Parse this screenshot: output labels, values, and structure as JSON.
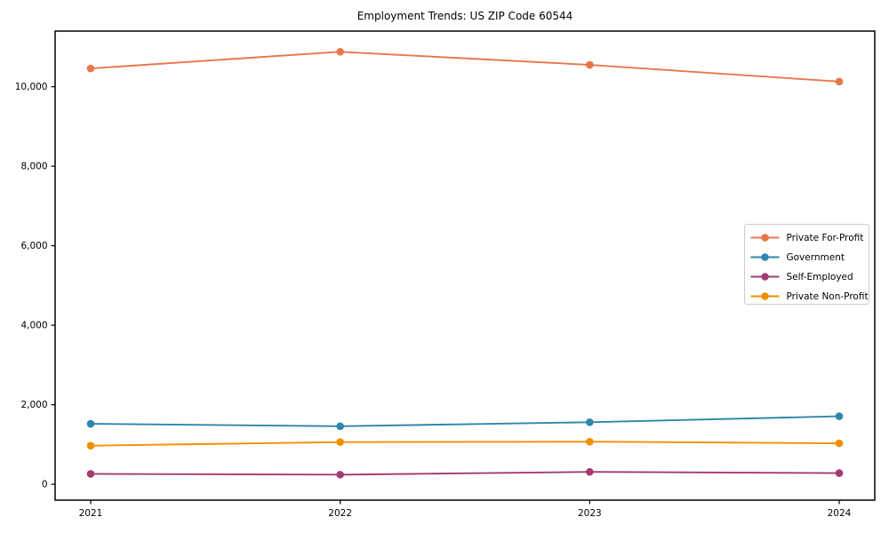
{
  "chart_data": {
    "type": "line",
    "title": "Employment Trends: US ZIP Code 60544",
    "categories": [
      "2021",
      "2022",
      "2023",
      "2024"
    ],
    "series": [
      {
        "name": "Private For-Profit",
        "color": "#E8764B",
        "values": [
          10460,
          10880,
          10550,
          10130
        ]
      },
      {
        "name": "Government",
        "color": "#2E86AB",
        "values": [
          1520,
          1460,
          1560,
          1710
        ]
      },
      {
        "name": "Self-Employed",
        "color": "#A23B72",
        "values": [
          260,
          240,
          310,
          280
        ]
      },
      {
        "name": "Private Non-Profit",
        "color": "#F18F01",
        "values": [
          970,
          1060,
          1070,
          1030
        ]
      }
    ],
    "xlabel": "",
    "ylabel": "",
    "ylim": [
      -400,
      11400
    ],
    "yticks": [
      0,
      2000,
      4000,
      6000,
      8000,
      10000
    ],
    "ytick_labels": [
      "0",
      "2,000",
      "4,000",
      "6,000",
      "8,000",
      "10,000"
    ],
    "grid": false,
    "legend_position": "center-right",
    "frame_color": "#000000",
    "background_color": "#ffffff",
    "legend_border_color": "#cccccc"
  }
}
